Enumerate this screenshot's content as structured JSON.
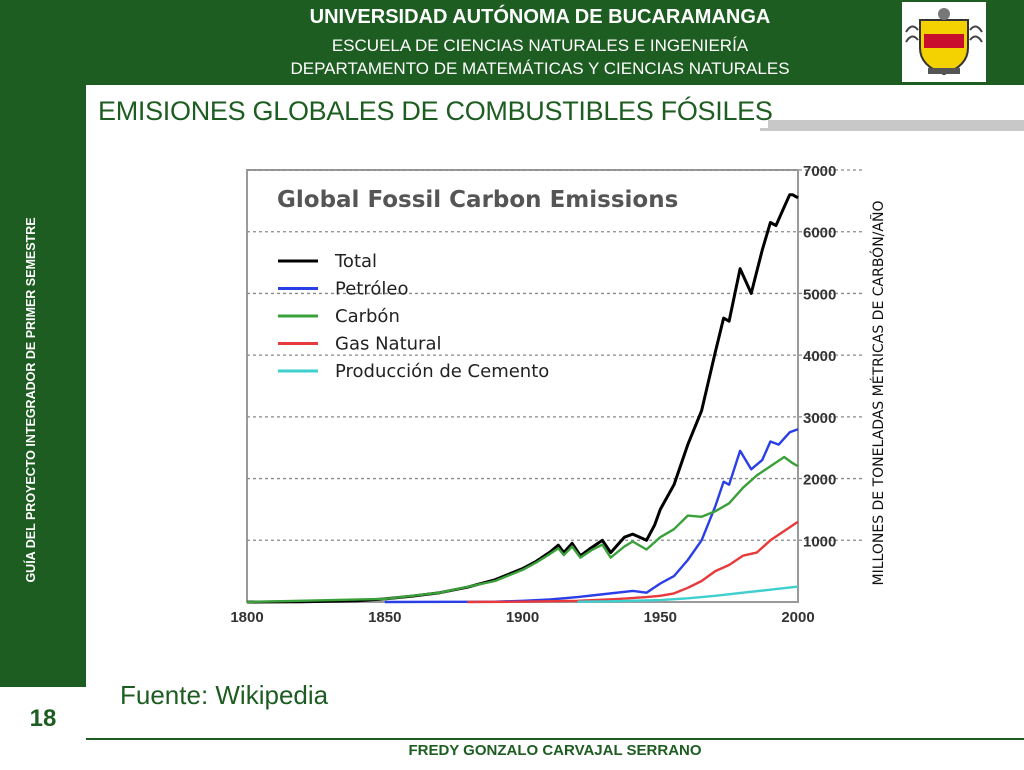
{
  "header": {
    "university": "UNIVERSIDAD AUTÓNOMA DE BUCARAMANGA",
    "school": "ESCUELA DE CIENCIAS NATURALES E INGENIERÍA",
    "department": "DEPARTAMENTO DE MATEMÁTICAS Y CIENCIAS NATURALES"
  },
  "sidebar": {
    "title": "GUÍA DEL PROYECTO INTEGRADOR DE PRIMER SEMESTRE"
  },
  "slide": {
    "title": "EMISIONES GLOBALES DE COMBUSTIBLES FÓSILES",
    "page_number": "18",
    "source": "Fuente: Wikipedia",
    "footer": "FREDY GONZALO CARVAJAL SERRANO"
  },
  "colors": {
    "brand_green": "#1e5d21"
  },
  "chart_data": {
    "type": "line",
    "title": "Global Fossil Carbon Emissions",
    "ylabel": "MILLONES DE TONELADAS MÉTRICAS DE CARBÓN/AÑO",
    "xlim": [
      1800,
      2000
    ],
    "ylim": [
      0,
      7000
    ],
    "xticks": [
      1800,
      1850,
      1900,
      1950,
      2000
    ],
    "yticks": [
      1000,
      2000,
      3000,
      4000,
      5000,
      6000,
      7000
    ],
    "grid": true,
    "legend_position": "top-left",
    "series": [
      {
        "name": "Total",
        "color": "#000000",
        "x": [
          1800,
          1820,
          1840,
          1850,
          1860,
          1870,
          1880,
          1890,
          1900,
          1905,
          1910,
          1913,
          1915,
          1918,
          1921,
          1925,
          1929,
          1932,
          1937,
          1940,
          1945,
          1948,
          1950,
          1955,
          1960,
          1965,
          1970,
          1973,
          1975,
          1979,
          1981,
          1983,
          1987,
          1990,
          1992,
          1995,
          1997,
          1998,
          2000
        ],
        "y": [
          0,
          5,
          20,
          50,
          95,
          150,
          240,
          360,
          540,
          660,
          810,
          920,
          800,
          950,
          750,
          880,
          1000,
          800,
          1050,
          1100,
          1000,
          1250,
          1500,
          1900,
          2550,
          3100,
          4050,
          4600,
          4550,
          5400,
          5200,
          5000,
          5700,
          6150,
          6100,
          6400,
          6600,
          6600,
          6550
        ]
      },
      {
        "name": "Petróleo",
        "color": "#2a3ee8",
        "x": [
          1850,
          1890,
          1900,
          1910,
          1920,
          1930,
          1940,
          1945,
          1950,
          1955,
          1960,
          1965,
          1970,
          1973,
          1975,
          1979,
          1983,
          1987,
          1990,
          1993,
          1997,
          2000
        ],
        "y": [
          0,
          5,
          20,
          40,
          80,
          130,
          180,
          150,
          300,
          420,
          680,
          1000,
          1550,
          1950,
          1900,
          2450,
          2150,
          2300,
          2600,
          2550,
          2750,
          2800
        ]
      },
      {
        "name": "Carbón",
        "color": "#3aa03a",
        "x": [
          1800,
          1850,
          1870,
          1890,
          1900,
          1905,
          1910,
          1913,
          1915,
          1918,
          1921,
          1925,
          1929,
          1932,
          1937,
          1940,
          1945,
          1950,
          1955,
          1960,
          1965,
          1970,
          1975,
          1980,
          1985,
          1990,
          1995,
          1998,
          2000
        ],
        "y": [
          0,
          50,
          150,
          340,
          520,
          640,
          780,
          870,
          760,
          900,
          720,
          840,
          930,
          720,
          900,
          980,
          850,
          1050,
          1180,
          1400,
          1380,
          1470,
          1600,
          1850,
          2050,
          2200,
          2350,
          2250,
          2200
        ]
      },
      {
        "name": "Gas Natural",
        "color": "#e83a3a",
        "x": [
          1880,
          1900,
          1920,
          1935,
          1945,
          1950,
          1955,
          1960,
          1965,
          1970,
          1975,
          1980,
          1985,
          1990,
          1995,
          2000
        ],
        "y": [
          0,
          5,
          20,
          50,
          80,
          100,
          140,
          230,
          340,
          500,
          600,
          750,
          800,
          1000,
          1150,
          1300
        ]
      },
      {
        "name": "Producción de Cemento",
        "color": "#3fcfcf",
        "x": [
          1920,
          1930,
          1940,
          1950,
          1960,
          1970,
          1980,
          1990,
          2000
        ],
        "y": [
          5,
          10,
          20,
          30,
          60,
          100,
          150,
          200,
          250
        ]
      }
    ]
  }
}
